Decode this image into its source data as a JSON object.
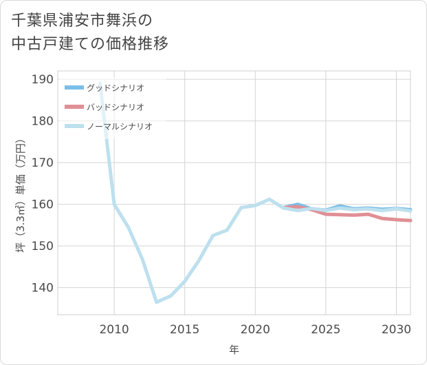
{
  "page": {
    "title_line1": "千葉県浦安市舞浜の",
    "title_line2": "中古戸建ての価格推移"
  },
  "chart_data": {
    "type": "line",
    "title": "千葉県浦安市舞浜の中古戸建ての価格推移",
    "xlabel": "年",
    "ylabel": "坪（3.3㎡）単価（万円）",
    "xlim": [
      2006,
      2031
    ],
    "ylim": [
      133.5,
      192
    ],
    "xticks": [
      2010,
      2015,
      2020,
      2025,
      2030
    ],
    "yticks": [
      140,
      150,
      160,
      170,
      180,
      190
    ],
    "grid": true,
    "legend_position": "top-left",
    "series": [
      {
        "name": "グッドシナリオ",
        "color": "#7bbfe8",
        "x": [
          2022,
          2023,
          2024,
          2025,
          2026,
          2027,
          2028,
          2029,
          2030,
          2031
        ],
        "y": [
          159.2,
          160.0,
          158.9,
          158.6,
          159.6,
          158.9,
          159.1,
          158.8,
          159.0,
          158.7
        ]
      },
      {
        "name": "バッドシナリオ",
        "color": "#e08f95",
        "x": [
          2022,
          2023,
          2024,
          2025,
          2026,
          2027,
          2028,
          2029,
          2030,
          2031
        ],
        "y": [
          159.2,
          159.4,
          158.7,
          157.6,
          157.5,
          157.4,
          157.6,
          156.6,
          156.3,
          156.1
        ]
      },
      {
        "name": "ノーマルシナリオ",
        "color": "#bde0ee",
        "x": [
          2009,
          2010,
          2011,
          2012,
          2013,
          2014,
          2015,
          2016,
          2017,
          2018,
          2019,
          2020,
          2021,
          2022,
          2023,
          2024,
          2025,
          2026,
          2027,
          2028,
          2029,
          2030,
          2031
        ],
        "y": [
          189.0,
          160.0,
          154.5,
          146.8,
          136.5,
          138.0,
          141.5,
          146.5,
          152.5,
          153.8,
          159.2,
          159.7,
          161.2,
          159.1,
          158.5,
          159.0,
          158.5,
          159.1,
          158.7,
          158.9,
          158.5,
          158.9,
          158.4
        ]
      }
    ]
  }
}
